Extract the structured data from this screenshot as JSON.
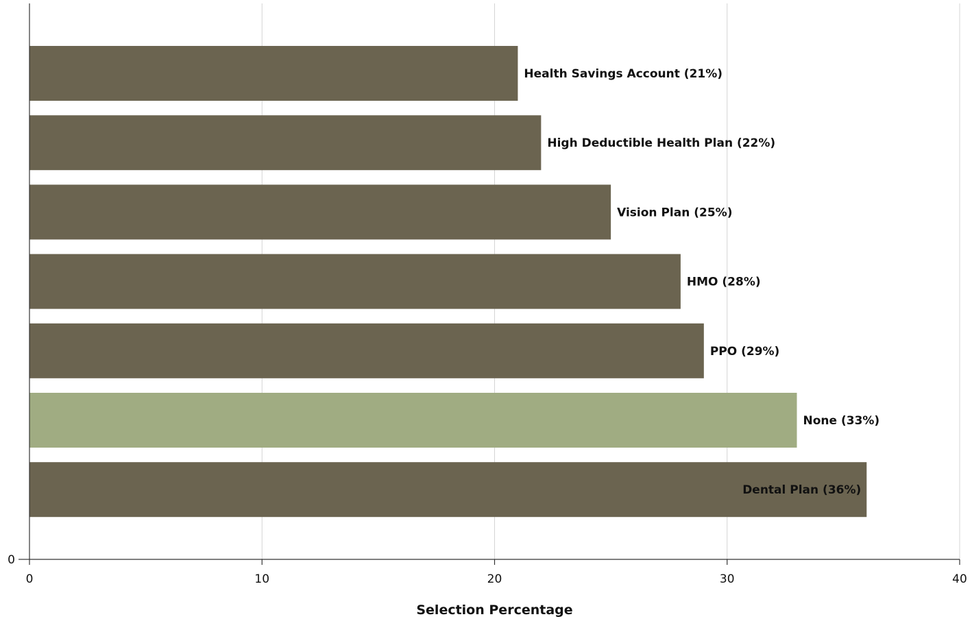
{
  "chart_data": {
    "type": "bar",
    "orientation": "horizontal",
    "categories": [
      "Health Savings Account",
      "High Deductible Health Plan",
      "Vision Plan",
      "HMO",
      "PPO",
      "None",
      "Dental Plan"
    ],
    "values": [
      21,
      22,
      25,
      28,
      29,
      33,
      36
    ],
    "labels": [
      "Health Savings Account (21%)",
      "High Deductible Health Plan (22%)",
      "Vision Plan (25%)",
      "HMO (28%)",
      "PPO (29%)",
      "None (33%)",
      "Dental Plan (36%)"
    ],
    "highlight_category": "None",
    "colors": {
      "default": "#6b6450",
      "highlight": "#a0ac82"
    },
    "xlabel": "Selection Percentage",
    "ylabel": "",
    "xlim": [
      0,
      40
    ],
    "xticks": [
      0,
      10,
      20,
      30,
      40
    ],
    "yticks": [
      0
    ],
    "grid": true
  }
}
